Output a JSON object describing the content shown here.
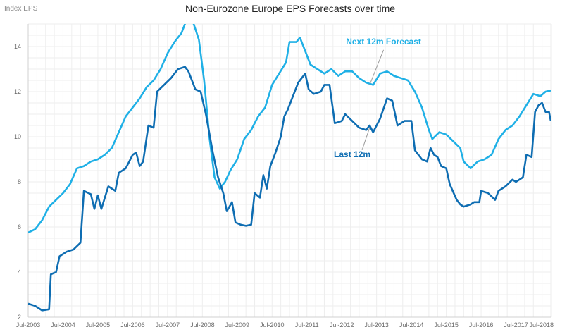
{
  "chart_data": {
    "type": "line",
    "title": "Non-Eurozone Europe EPS Forecasts over time",
    "ylabel": "Index EPS",
    "xlabel": "",
    "ylim": [
      2,
      15
    ],
    "yticks": [
      2,
      4,
      6,
      8,
      10,
      12,
      14
    ],
    "xlim": [
      2003.5,
      2018.5
    ],
    "xticks": [
      {
        "x": 2003.5,
        "label": "Jul-2003"
      },
      {
        "x": 2004.5,
        "label": "Jul-2004"
      },
      {
        "x": 2005.5,
        "label": "Jul-2005"
      },
      {
        "x": 2006.5,
        "label": "Jul-2006"
      },
      {
        "x": 2007.5,
        "label": "Jul-2007"
      },
      {
        "x": 2008.5,
        "label": "Jul-2008"
      },
      {
        "x": 2009.5,
        "label": "Jul-2009"
      },
      {
        "x": 2010.5,
        "label": "Jul-2010"
      },
      {
        "x": 2011.5,
        "label": "Jul-2011"
      },
      {
        "x": 2012.5,
        "label": "Jul-2012"
      },
      {
        "x": 2013.5,
        "label": "Jul-2013"
      },
      {
        "x": 2014.5,
        "label": "Jul-2014"
      },
      {
        "x": 2015.5,
        "label": "Jul-2015"
      },
      {
        "x": 2016.5,
        "label": "Jul-2016"
      },
      {
        "x": 2017.5,
        "label": "Jul-2017"
      },
      {
        "x": 2018.5,
        "label": "Jul-2018"
      }
    ],
    "grid": true,
    "series": [
      {
        "name": "Next 12m Forecast",
        "color": "#1fb0e6",
        "points": [
          [
            2003.5,
            5.75
          ],
          [
            2003.7,
            5.9
          ],
          [
            2003.9,
            6.3
          ],
          [
            2004.1,
            6.9
          ],
          [
            2004.3,
            7.2
          ],
          [
            2004.5,
            7.5
          ],
          [
            2004.7,
            7.9
          ],
          [
            2004.9,
            8.6
          ],
          [
            2005.1,
            8.7
          ],
          [
            2005.3,
            8.9
          ],
          [
            2005.5,
            9.0
          ],
          [
            2005.7,
            9.2
          ],
          [
            2005.9,
            9.5
          ],
          [
            2006.1,
            10.2
          ],
          [
            2006.3,
            10.9
          ],
          [
            2006.5,
            11.3
          ],
          [
            2006.7,
            11.7
          ],
          [
            2006.9,
            12.2
          ],
          [
            2007.1,
            12.5
          ],
          [
            2007.3,
            13.0
          ],
          [
            2007.5,
            13.7
          ],
          [
            2007.7,
            14.2
          ],
          [
            2007.9,
            14.6
          ],
          [
            2008.0,
            15.0
          ],
          [
            2008.1,
            15.4
          ],
          [
            2008.25,
            15.0
          ],
          [
            2008.4,
            14.3
          ],
          [
            2008.55,
            12.5
          ],
          [
            2008.7,
            10.0
          ],
          [
            2008.85,
            8.2
          ],
          [
            2009.0,
            7.7
          ],
          [
            2009.15,
            8.0
          ],
          [
            2009.3,
            8.5
          ],
          [
            2009.5,
            9.0
          ],
          [
            2009.7,
            9.9
          ],
          [
            2009.9,
            10.3
          ],
          [
            2010.1,
            10.9
          ],
          [
            2010.3,
            11.3
          ],
          [
            2010.5,
            12.3
          ],
          [
            2010.7,
            12.8
          ],
          [
            2010.9,
            13.3
          ],
          [
            2011.0,
            14.2
          ],
          [
            2011.2,
            14.2
          ],
          [
            2011.3,
            14.4
          ],
          [
            2011.45,
            13.8
          ],
          [
            2011.6,
            13.2
          ],
          [
            2011.8,
            13.0
          ],
          [
            2012.0,
            12.8
          ],
          [
            2012.2,
            13.0
          ],
          [
            2012.4,
            12.7
          ],
          [
            2012.6,
            12.9
          ],
          [
            2012.8,
            12.9
          ],
          [
            2013.0,
            12.6
          ],
          [
            2013.2,
            12.4
          ],
          [
            2013.4,
            12.3
          ],
          [
            2013.6,
            12.8
          ],
          [
            2013.8,
            12.9
          ],
          [
            2014.0,
            12.7
          ],
          [
            2014.2,
            12.6
          ],
          [
            2014.4,
            12.5
          ],
          [
            2014.6,
            12.0
          ],
          [
            2014.8,
            11.3
          ],
          [
            2015.0,
            10.3
          ],
          [
            2015.1,
            9.9
          ],
          [
            2015.3,
            10.2
          ],
          [
            2015.5,
            10.1
          ],
          [
            2015.7,
            9.8
          ],
          [
            2015.9,
            9.5
          ],
          [
            2016.0,
            8.9
          ],
          [
            2016.2,
            8.6
          ],
          [
            2016.4,
            8.9
          ],
          [
            2016.6,
            9.0
          ],
          [
            2016.8,
            9.2
          ],
          [
            2017.0,
            9.9
          ],
          [
            2017.2,
            10.3
          ],
          [
            2017.4,
            10.5
          ],
          [
            2017.6,
            10.9
          ],
          [
            2017.8,
            11.4
          ],
          [
            2018.0,
            11.9
          ],
          [
            2018.2,
            11.8
          ],
          [
            2018.35,
            12.0
          ],
          [
            2018.5,
            12.05
          ]
        ]
      },
      {
        "name": "Last 12m",
        "color": "#0e6db2",
        "points": [
          [
            2003.5,
            2.6
          ],
          [
            2003.7,
            2.5
          ],
          [
            2003.9,
            2.3
          ],
          [
            2004.1,
            2.35
          ],
          [
            2004.15,
            3.9
          ],
          [
            2004.3,
            4.0
          ],
          [
            2004.4,
            4.7
          ],
          [
            2004.6,
            4.9
          ],
          [
            2004.8,
            5.0
          ],
          [
            2005.0,
            5.3
          ],
          [
            2005.1,
            7.6
          ],
          [
            2005.3,
            7.45
          ],
          [
            2005.4,
            6.8
          ],
          [
            2005.5,
            7.4
          ],
          [
            2005.6,
            6.8
          ],
          [
            2005.8,
            7.8
          ],
          [
            2006.0,
            7.6
          ],
          [
            2006.1,
            8.4
          ],
          [
            2006.3,
            8.6
          ],
          [
            2006.5,
            9.2
          ],
          [
            2006.6,
            9.3
          ],
          [
            2006.7,
            8.7
          ],
          [
            2006.8,
            8.9
          ],
          [
            2006.95,
            10.5
          ],
          [
            2007.1,
            10.4
          ],
          [
            2007.2,
            12.0
          ],
          [
            2007.4,
            12.3
          ],
          [
            2007.6,
            12.6
          ],
          [
            2007.8,
            13.0
          ],
          [
            2008.0,
            13.1
          ],
          [
            2008.1,
            12.9
          ],
          [
            2008.3,
            12.1
          ],
          [
            2008.45,
            12.0
          ],
          [
            2008.6,
            11.0
          ],
          [
            2008.8,
            9.3
          ],
          [
            2008.95,
            8.2
          ],
          [
            2009.1,
            7.5
          ],
          [
            2009.2,
            6.7
          ],
          [
            2009.35,
            7.1
          ],
          [
            2009.45,
            6.2
          ],
          [
            2009.6,
            6.1
          ],
          [
            2009.75,
            6.05
          ],
          [
            2009.9,
            6.1
          ],
          [
            2010.0,
            7.5
          ],
          [
            2010.15,
            7.3
          ],
          [
            2010.25,
            8.3
          ],
          [
            2010.35,
            7.7
          ],
          [
            2010.45,
            8.7
          ],
          [
            2010.6,
            9.3
          ],
          [
            2010.75,
            10.0
          ],
          [
            2010.85,
            10.9
          ],
          [
            2010.95,
            11.2
          ],
          [
            2011.1,
            11.8
          ],
          [
            2011.25,
            12.4
          ],
          [
            2011.35,
            12.6
          ],
          [
            2011.45,
            12.8
          ],
          [
            2011.55,
            12.1
          ],
          [
            2011.7,
            11.9
          ],
          [
            2011.9,
            12.0
          ],
          [
            2012.0,
            12.3
          ],
          [
            2012.15,
            12.3
          ],
          [
            2012.3,
            10.6
          ],
          [
            2012.5,
            10.7
          ],
          [
            2012.6,
            11.0
          ],
          [
            2012.8,
            10.7
          ],
          [
            2013.0,
            10.4
          ],
          [
            2013.2,
            10.3
          ],
          [
            2013.3,
            10.5
          ],
          [
            2013.4,
            10.2
          ],
          [
            2013.6,
            10.8
          ],
          [
            2013.8,
            11.7
          ],
          [
            2013.95,
            11.6
          ],
          [
            2014.1,
            10.5
          ],
          [
            2014.3,
            10.7
          ],
          [
            2014.5,
            10.7
          ],
          [
            2014.6,
            9.4
          ],
          [
            2014.8,
            9.0
          ],
          [
            2014.95,
            8.9
          ],
          [
            2015.05,
            9.5
          ],
          [
            2015.15,
            9.2
          ],
          [
            2015.25,
            9.1
          ],
          [
            2015.35,
            8.7
          ],
          [
            2015.5,
            8.6
          ],
          [
            2015.6,
            7.9
          ],
          [
            2015.8,
            7.2
          ],
          [
            2015.9,
            7.0
          ],
          [
            2016.0,
            6.9
          ],
          [
            2016.2,
            7.0
          ],
          [
            2016.3,
            7.1
          ],
          [
            2016.45,
            7.1
          ],
          [
            2016.5,
            7.6
          ],
          [
            2016.7,
            7.5
          ],
          [
            2016.9,
            7.2
          ],
          [
            2017.0,
            7.6
          ],
          [
            2017.2,
            7.8
          ],
          [
            2017.4,
            8.1
          ],
          [
            2017.5,
            8.0
          ],
          [
            2017.7,
            8.2
          ],
          [
            2017.8,
            9.2
          ],
          [
            2017.95,
            9.1
          ],
          [
            2018.05,
            11.1
          ],
          [
            2018.15,
            11.4
          ],
          [
            2018.25,
            11.5
          ],
          [
            2018.35,
            11.1
          ],
          [
            2018.45,
            11.1
          ],
          [
            2018.5,
            10.7
          ]
        ]
      }
    ],
    "annotations": [
      {
        "text": "Next 12m Forecast",
        "series": 0,
        "point": [
          2013.3,
          12.3
        ],
        "anchor": [
          2013.7,
          14.1
        ]
      },
      {
        "text": "Last 12m",
        "series": 1,
        "point": [
          2013.3,
          10.4
        ],
        "anchor": [
          2012.8,
          9.1
        ]
      }
    ]
  }
}
